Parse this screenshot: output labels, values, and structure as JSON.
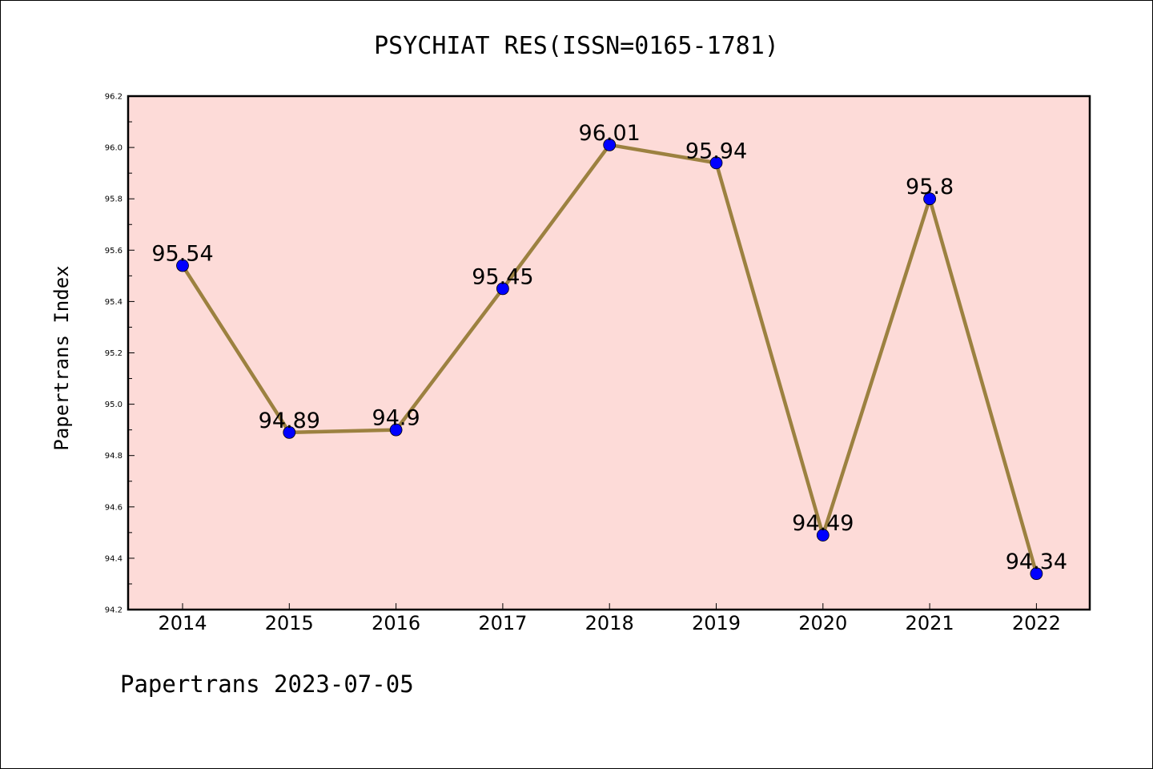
{
  "chart_data": {
    "type": "line",
    "title": "PSYCHIAT RES(ISSN=0165-1781)",
    "ylabel": "Papertrans Index",
    "xlabel": "",
    "categories": [
      "2014",
      "2015",
      "2016",
      "2017",
      "2018",
      "2019",
      "2020",
      "2021",
      "2022"
    ],
    "series": [
      {
        "values": [
          95.54,
          94.89,
          94.9,
          95.45,
          96.01,
          95.94,
          94.49,
          95.8,
          94.34
        ],
        "labels": [
          "95.54",
          "94.89",
          "94.9",
          "95.45",
          "96.01",
          "95.94",
          "94.49",
          "95.8",
          "94.34"
        ]
      }
    ],
    "ylim": [
      94.2,
      96.2
    ],
    "yticks": [
      "94.2",
      "94.4",
      "94.6",
      "94.8",
      "95.0",
      "95.2",
      "95.4",
      "95.6",
      "95.8",
      "96.0",
      "96.2"
    ],
    "grid": false,
    "legend": "none"
  },
  "footer": "Papertrans 2023-07-05",
  "colors": {
    "plot_background": "#fddbd8",
    "line": "#9c8140",
    "marker": "#0000ff",
    "axis": "#000000"
  }
}
